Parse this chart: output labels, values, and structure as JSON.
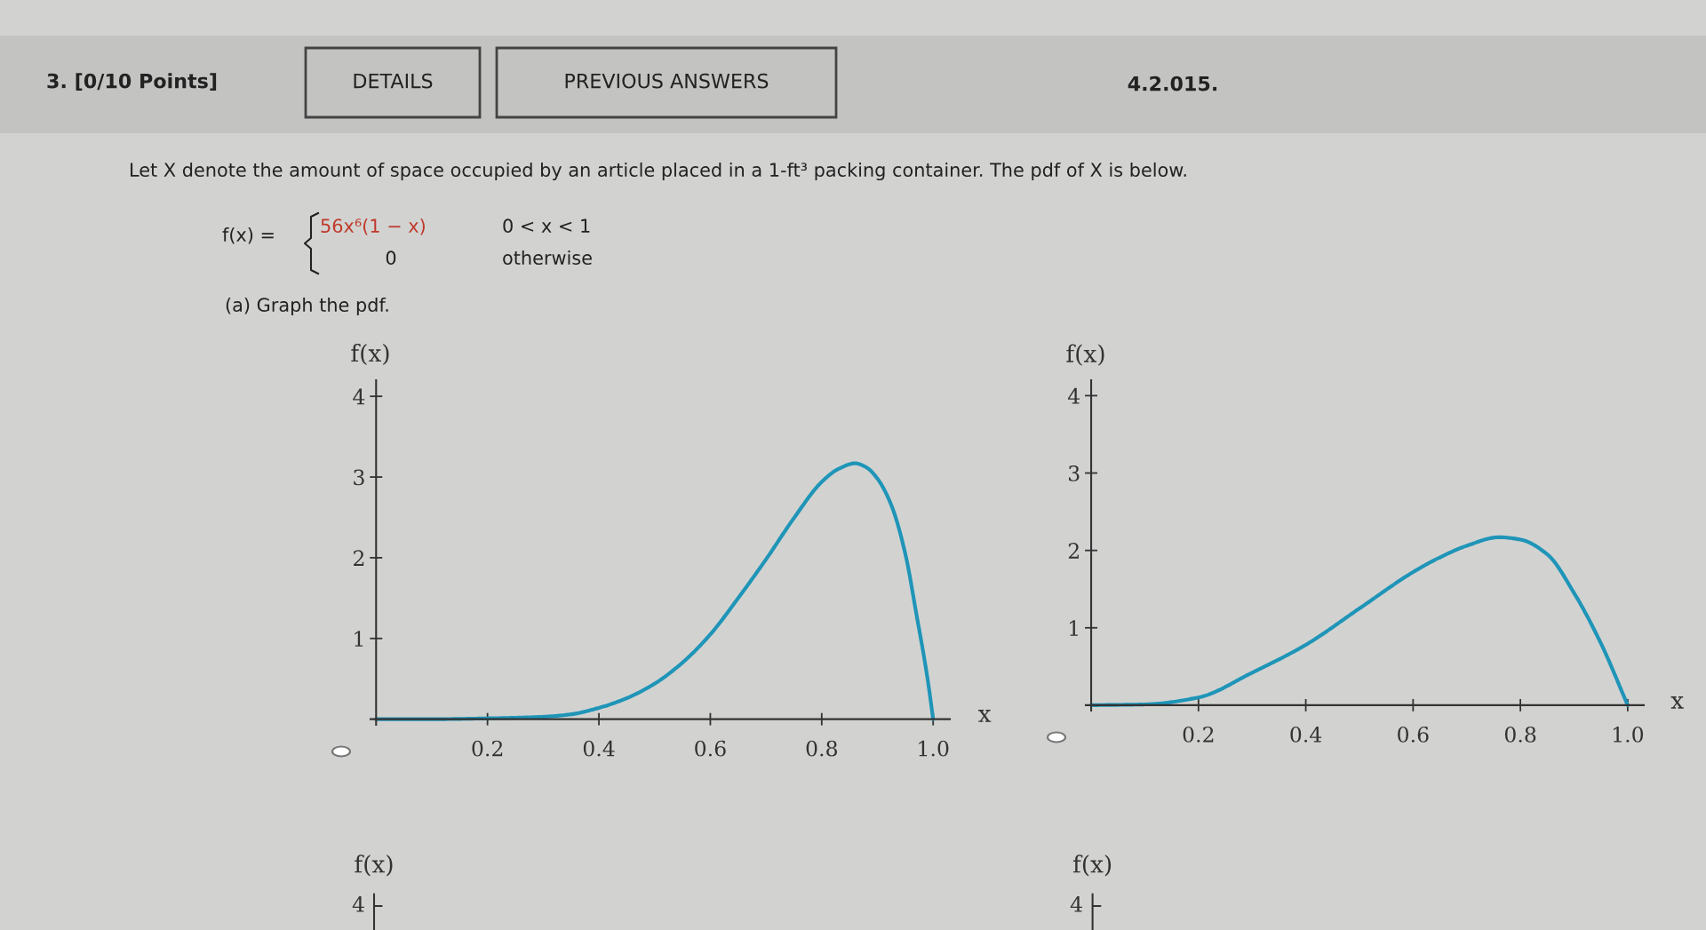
{
  "chart_data": [
    {
      "type": "line",
      "xlabel": "x",
      "ylabel": "f(x)",
      "annotations": [
        "3. [0/10 Points]",
        "DETAILS",
        "PREVIOUS ANSWERS",
        "4.2.015.",
        "Let X denote the amount of space occupied by an article placed in a 1-ft³ packing container. The pdf of X is below.",
        "f(x) =",
        "56x⁶(1 − x)",
        "0 < x < 1",
        "0",
        "otherwise",
        "(a) Graph the pdf."
      ],
      "xlim": [
        -0.01,
        1.03
      ],
      "ylim": [
        -0.07,
        4.2
      ],
      "xticks": [
        0.2,
        0.4,
        0.6,
        0.8,
        {
          "value": 1,
          "label": "1.0"
        }
      ],
      "yticks": [
        1,
        2,
        3,
        4
      ],
      "grid": false,
      "legend": false,
      "marker": "none",
      "line_style": "solid",
      "series": [
        {
          "color": "#1f95b8",
          "x": [
            0,
            0.1,
            0.2,
            0.3,
            0.35,
            0.4,
            0.45,
            0.5,
            0.55,
            0.6,
            0.65,
            0.7,
            0.75,
            0.8,
            0.83,
            0.86,
            0.88,
            0.9,
            0.925,
            0.95,
            0.97,
            0.99,
            1.0
          ],
          "values": [
            0,
            0,
            0.01,
            0.03,
            0.06,
            0.14,
            0.26,
            0.44,
            0.7,
            1.05,
            1.5,
            1.98,
            2.49,
            2.94,
            3.1,
            3.17,
            3.12,
            2.98,
            2.65,
            2.05,
            1.3,
            0.5,
            0
          ]
        }
      ]
    },
    {
      "type": "line",
      "xlabel": "x",
      "ylabel": "f(x)",
      "xlim": [
        -0.01,
        1.03
      ],
      "ylim": [
        -0.07,
        4.2
      ],
      "xticks": [
        0.2,
        0.4,
        0.6,
        0.8,
        {
          "value": 1,
          "label": "1.0"
        }
      ],
      "yticks": [
        1,
        2,
        3,
        4
      ],
      "grid": false,
      "legend": false,
      "marker": "none",
      "line_style": "solid",
      "series": [
        {
          "color": "#1f95b8",
          "x": [
            0,
            0.1,
            0.2,
            0.3,
            0.4,
            0.5,
            0.6,
            0.65,
            0.7,
            0.76,
            0.8,
            0.85,
            0.9,
            0.95,
            1.0
          ],
          "values": [
            0,
            0.01,
            0.1,
            0.42,
            0.78,
            1.25,
            1.72,
            1.91,
            2.06,
            2.17,
            2.14,
            1.95,
            1.45,
            0.8,
            0
          ]
        }
      ]
    },
    {
      "type": "other",
      "annotations": [
        "f(x)",
        "4"
      ]
    },
    {
      "type": "other",
      "annotations": [
        "f(x)",
        "4"
      ]
    }
  ]
}
